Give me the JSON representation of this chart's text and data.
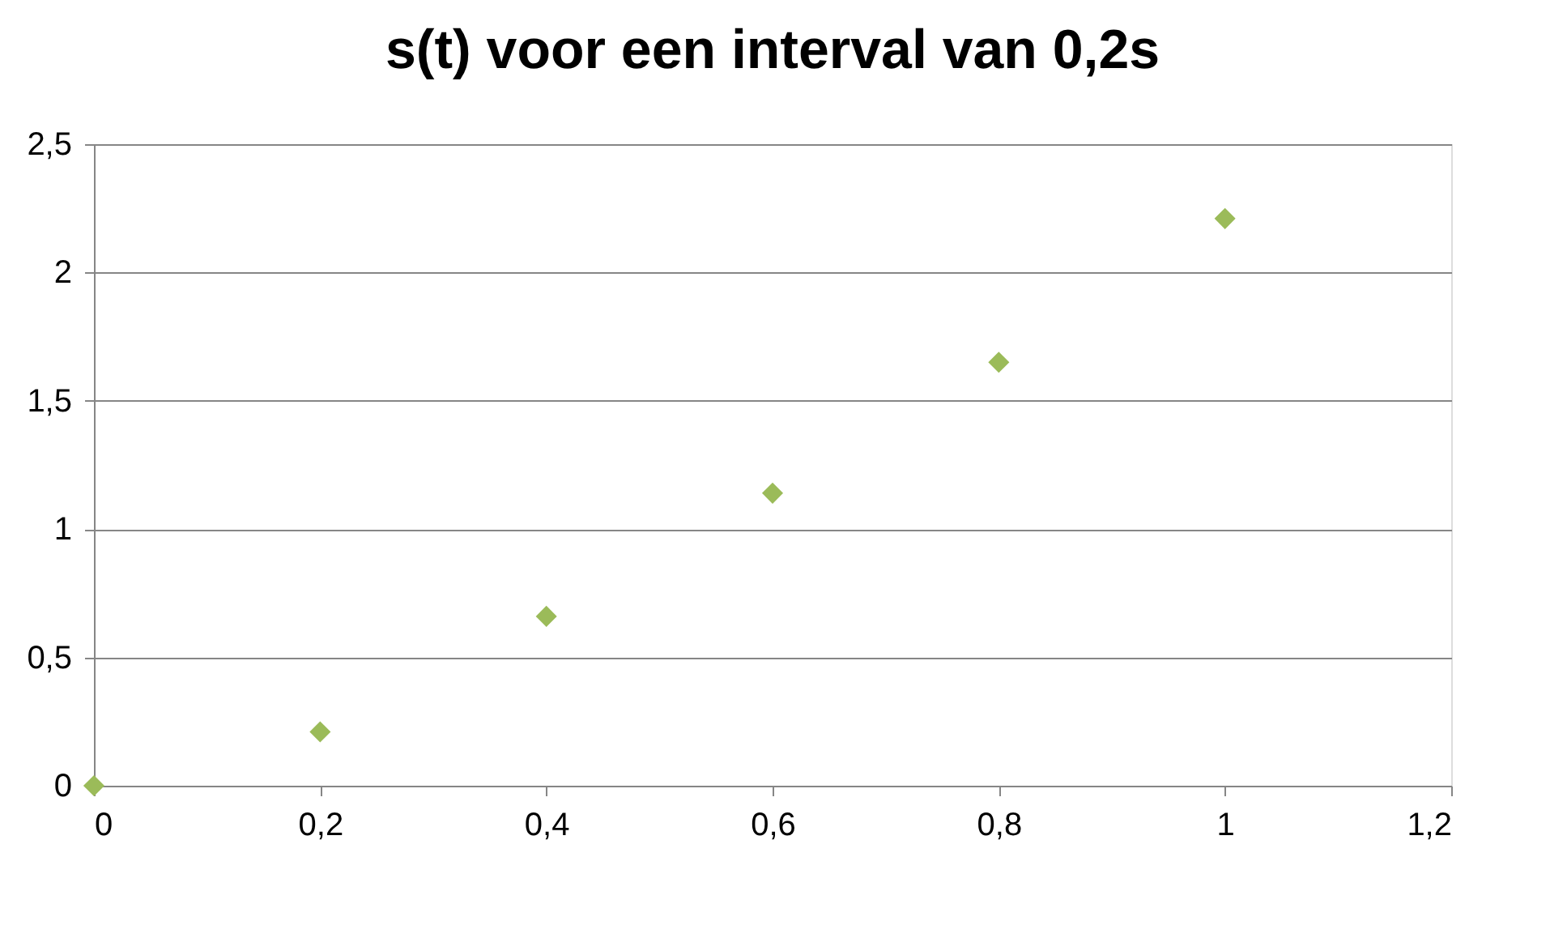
{
  "chart_data": {
    "type": "scatter",
    "title": "s(t) voor een interval van 0,2s",
    "x": [
      0,
      0.2,
      0.4,
      0.6,
      0.8,
      1.0
    ],
    "series": [
      {
        "color": "#9bbb59",
        "values": [
          0,
          0.21,
          0.66,
          1.14,
          1.65,
          2.21
        ]
      }
    ],
    "xlim": [
      0,
      1.2
    ],
    "xticks": [
      0,
      {
        "value": 0.2,
        "label": "0,2"
      },
      {
        "value": 0.4,
        "label": "0,4"
      },
      {
        "value": 0.6,
        "label": "0,6"
      },
      {
        "value": 0.8,
        "label": "0,8"
      },
      1,
      {
        "value": 1.2,
        "label": "1,2"
      }
    ],
    "ylim": [
      0,
      2.5
    ],
    "yticks": [
      0,
      {
        "value": 0.5,
        "label": "0,5"
      },
      1,
      {
        "value": 1.5,
        "label": "1,5"
      },
      2,
      {
        "value": 2.5,
        "label": "2,5"
      }
    ],
    "grid": "y",
    "marker": "diamond"
  }
}
